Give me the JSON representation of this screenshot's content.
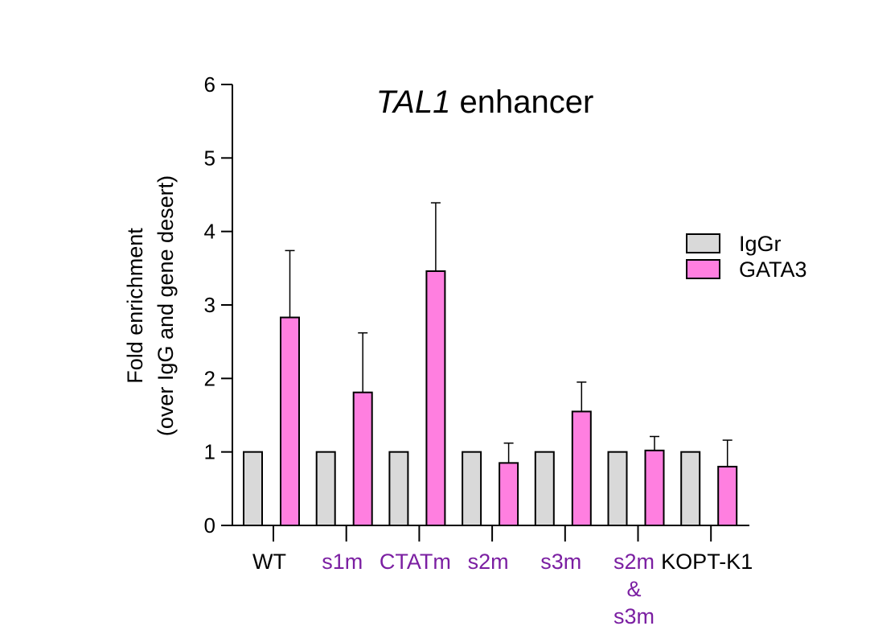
{
  "chart_data": {
    "type": "bar",
    "title_main": "TAL1",
    "title_rest": " enhancer",
    "ylabel_line1": "Fold enrichment",
    "ylabel_line2": "(over IgG and gene desert)",
    "ylim": [
      0,
      6
    ],
    "yticks": [
      "0",
      "1",
      "2",
      "3",
      "4",
      "5",
      "6"
    ],
    "grid": false,
    "legend_position": "right",
    "categories": [
      {
        "lines": [
          "WT"
        ],
        "color": "#000000"
      },
      {
        "lines": [
          "s1m"
        ],
        "color": "#7B1FA2"
      },
      {
        "lines": [
          "CTATm"
        ],
        "color": "#7B1FA2"
      },
      {
        "lines": [
          "s2m"
        ],
        "color": "#7B1FA2"
      },
      {
        "lines": [
          "s3m"
        ],
        "color": "#7B1FA2"
      },
      {
        "lines": [
          "s2m",
          "&",
          "s3m"
        ],
        "color": "#7B1FA2"
      },
      {
        "lines": [
          "KOPT-K1"
        ],
        "color": "#000000"
      }
    ],
    "series": [
      {
        "name": "IgGr",
        "color": "#D9D9D9",
        "values": [
          1,
          1,
          1,
          1,
          1,
          1,
          1
        ],
        "errors": null
      },
      {
        "name": "GATA3",
        "color": "#FF7FE0",
        "values": [
          2.83,
          1.81,
          3.46,
          0.85,
          1.55,
          1.02,
          0.8
        ],
        "errors": [
          0.91,
          0.81,
          0.93,
          0.27,
          0.4,
          0.19,
          0.36
        ]
      }
    ]
  }
}
